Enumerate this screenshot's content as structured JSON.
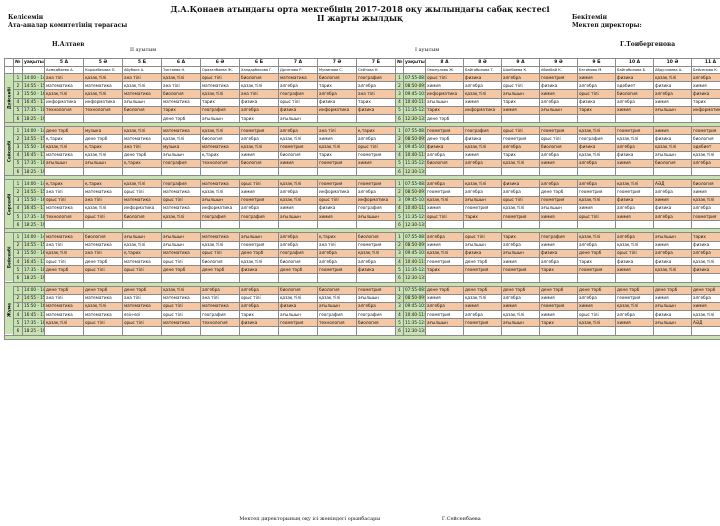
{
  "header": {
    "title": "Д.А.Қонаев атындағы орта мектебінің  2017-2018  оқу жылындағы сабақ кестесі",
    "subtitle": "II жарты жылдық",
    "agreed_l1": "Келісемін",
    "agreed_l2": "Ата-аналар комитетінің төрағасы",
    "approve_l1": "Бекітемін",
    "approve_l2": "Мектеп директоры:",
    "left_name": "Н.Алтаев",
    "right_name": "Г.Тоибергенова",
    "shift1": "II ауысым",
    "shift2": "I ауысым"
  },
  "columns": {
    "num": "№",
    "time": "уақыты",
    "shift1_classes": [
      "5 А",
      "5 Ә",
      "5 Б",
      "6 А",
      "6 Ә",
      "6 Б",
      "7 А",
      "7 Ә",
      "7 Б"
    ],
    "shift2_classes": [
      "8 А",
      "8 Ә",
      "9 А",
      "9 Ә",
      "9 Б",
      "10 А",
      "10 Ә",
      "11 А"
    ],
    "shift1_teachers": [
      "Ахмедбаева А.",
      "Коржабекова Л.",
      "Абубаке А.",
      "Токтаева Н.",
      "Оразалбаева Ж.",
      "Халдарбекова Г.",
      "Дрсенова Р.",
      "Муминова С.",
      "Сейтова Н."
    ],
    "shift2_teachers": [
      "Омонулова Ж.",
      "Байгабилова Т.",
      "Шонбаева К.",
      "Абилбай К.",
      "Бегимова М.",
      "Байгабилова Б.",
      "Абдуллаева А.",
      "Бейсенова К."
    ]
  },
  "days": [
    {
      "name": "Дүйсенбі",
      "rows": [
        [
          "14:00 - 14:45",
          "ана тілі",
          "қазақ тілі",
          "ана тілі",
          "қазақ тілі",
          "орыс тілі",
          "биология",
          "математика",
          "биология",
          "география",
          "07:55-08:40",
          "орыс тілі",
          "физика",
          "алгебра",
          "геометрия",
          "химия",
          "физика",
          "қазақ тілі",
          "алгебра"
        ],
        [
          "14:55 - 15:40",
          "математика",
          "математика",
          "қазақ тілі",
          "ана тілі",
          "математика",
          "қазақ тілі",
          "алгебра",
          "тарих",
          "алгебра",
          "08:50-09:35",
          "химия",
          "алгебра",
          "орыс тілі",
          "физика",
          "алгебра",
          "әдебиет",
          "физика",
          "химия"
        ],
        [
          "15:50 - 16:35",
          "қазақ тілі",
          "қазақ тілі",
          "математика",
          "биология",
          "қазақ тілі",
          "ана тілі",
          "география",
          "алгебра",
          "ана тілі",
          "09:45-10:30",
          "информатика",
          "қазақ тілі",
          "ағылшын",
          "химия",
          "орыс тілі",
          "биология",
          "алгебра",
          "физика"
        ],
        [
          "16:45 - 17:30",
          "информатика",
          "информатика",
          "ағылшын",
          "математика",
          "тарих",
          "физика",
          "орыс тілі",
          "физика",
          "тарих",
          "10:40-11:25",
          "ағылшын",
          "химия",
          "тарих",
          "алгебра",
          "физика",
          "алгебра",
          "химия",
          "тарих"
        ],
        [
          "17:35 - 18:20",
          "технология",
          "технология",
          "биология",
          "тарих",
          "география",
          "алгебра",
          "физика",
          "информатика",
          "физика",
          "11:35-12:20",
          "тарих",
          "информатика",
          "химия",
          "ағылшын",
          "тарих",
          "химия",
          "ағылшын",
          "информатика"
        ],
        [
          "18:25 - 19:10",
          "",
          "",
          "",
          "дене тәрб",
          "ағылшын",
          "тарих",
          "ағылшын",
          "",
          "",
          "12:30-13:15",
          "дене тәрб",
          "",
          "",
          "",
          "",
          "",
          "",
          ""
        ]
      ]
    },
    {
      "name": "Сейсенбі",
      "rows": [
        [
          "14:00 - 14:45",
          "дене тәрб",
          "музыка",
          "қазақ тілі",
          "математика",
          "қазақ тілі",
          "геометрия",
          "алгебра",
          "ана тілі",
          "қ.тарих",
          "07:55-08:40",
          "геометрия",
          "география",
          "орыс тілі",
          "геометрия",
          "қазақ тілі",
          "геометрия",
          "химия",
          "геометрия"
        ],
        [
          "14:55 - 15:40",
          "қ.тарих",
          "дене тәрб",
          "математика",
          "қазақ тілі",
          "биология",
          "алгебра",
          "қазақ тілі",
          "химия",
          "алгебра",
          "08:50-09:35",
          "дене тәрб",
          "физика",
          "геометрия",
          "орыс тілі",
          "география",
          "қазақ тілі",
          "физика",
          "биология"
        ],
        [
          "15:50 - 16:35",
          "қазақ тілі",
          "қ.тарих",
          "ана тілі",
          "музыка",
          "математика",
          "қазақ тілі",
          "геометрия",
          "қазақ тілі",
          "орыс тілі",
          "09:45-10:30",
          "физика",
          "қазақ тілі",
          "алгебра",
          "биология",
          "физика",
          "алгебра",
          "қазақ тілі",
          "әдебиет"
        ],
        [
          "16:45 - 17:30",
          "математика",
          "қазақ тілі",
          "дене тәрб",
          "ағылшын",
          "қ.тарих",
          "химия",
          "биология",
          "тарих",
          "геометрия",
          "10:40-11:25",
          "алгебра",
          "химия",
          "тарих",
          "алгебра",
          "қазақ тілі",
          "физика",
          "ағылшын",
          "қазақ тілі"
        ],
        [
          "17:35 - 18:20",
          "ағылшын",
          "ағылшын",
          "қ.тарих",
          "география",
          "технология",
          "биология",
          "химия",
          "геометрия",
          "химия",
          "11:35-12:20",
          "биология",
          "алгебра",
          "қазақ тілі",
          "химия",
          "алгебра",
          "химия",
          "биология",
          "алгебра"
        ],
        [
          "18:25 - 19:10",
          "",
          "",
          "",
          "",
          "",
          "",
          "",
          "",
          "",
          "12:30-13:15",
          "",
          "",
          "",
          "",
          "",
          "",
          "",
          ""
        ]
      ]
    },
    {
      "name": "Сәрсенбі",
      "rows": [
        [
          "14:00 - 14:45",
          "қ.тарих",
          "қ.тарих",
          "қазақ тілі",
          "география",
          "математика",
          "орыс тілі",
          "қазақ тілі",
          "геометрия",
          "геометрия",
          "07:55-08:40",
          "алгебра",
          "қазақ тілі",
          "физика",
          "алгебра",
          "алгебра",
          "қазақ тілі",
          "АӘД",
          "биология"
        ],
        [
          "14:55 - 15:40",
          "ана тілі",
          "математика",
          "орыс тілі",
          "математика",
          "қазақ тілі",
          "химия",
          "алгебра",
          "информатика",
          "алгебра",
          "08:50-09:35",
          "геометрия",
          "алгебра",
          "алгебра",
          "дене тәрб",
          "геометрия",
          "геометрия",
          "алгебра",
          "химия"
        ],
        [
          "15:50 - 16:35",
          "орыс тілі",
          "ана тілі",
          "математика",
          "орыс тілі",
          "ағылшын",
          "геометрия",
          "қазақ тілі",
          "орыс тілі",
          "информатика",
          "09:45-10:30",
          "қазақ тілі",
          "ағылшын",
          "орыс тілі",
          "геометрия",
          "қазақ тілі",
          "физика",
          "химия",
          "қазақ тілі"
        ],
        [
          "16:45 - 17:30",
          "математика",
          "қазақ тілі",
          "информатика",
          "математика",
          "информатика",
          "алгебра",
          "химия",
          "физика",
          "география",
          "10:40-11:25",
          "химия",
          "геометрия",
          "қазақ тілі",
          "ағылшын",
          "химия",
          "алгебра",
          "физика",
          "алгебра"
        ],
        [
          "17:35 - 18:20",
          "технология",
          "орыс тілі",
          "биология",
          "қазақ тілі",
          "география",
          "география",
          "ағылшын",
          "химия",
          "ағылшын",
          "11:35-12:20",
          "орыс тілі",
          "тарих",
          "геометрия",
          "химия",
          "орыс тілі",
          "химия",
          "алгебра",
          "геометрия"
        ],
        [
          "18:25 - 19:10",
          "",
          "",
          "",
          "",
          "",
          "",
          "",
          "",
          "",
          "12:30-13:15",
          "",
          "",
          "",
          "",
          "",
          "",
          "",
          ""
        ]
      ]
    },
    {
      "name": "Бейсенбі",
      "rows": [
        [
          "14:00 - 14:45",
          "математика",
          "биология",
          "ағылшын",
          "ағылшын",
          "математика",
          "ағылшын",
          "алгебра",
          "қ.тарих",
          "биология",
          "07:55-08:40",
          "алгебра",
          "орыс тілі",
          "тарих",
          "география",
          "қазақ тілі",
          "алгебра",
          "ағылшын",
          "тарих"
        ],
        [
          "14:55 - 15:40",
          "ана тілі",
          "математика",
          "қазақ тілі",
          "ағылшын",
          "қазақ тілі",
          "геометрия",
          "алгебра",
          "ана тілі",
          "геометрия",
          "08:50-09:35",
          "химия",
          "ағылшын",
          "алгебра",
          "химия",
          "алгебра",
          "қазақ тілі",
          "химия",
          "физика"
        ],
        [
          "15:50 - 16:35",
          "қазақ тілі",
          "ана тілі",
          "қ.тарих",
          "математика",
          "орыс тілі",
          "дене тәрб",
          "география",
          "алгебра",
          "қазақ тілі",
          "09:45-10:30",
          "қазақ тілі",
          "физика",
          "ағылшын",
          "физика",
          "дене тәрб",
          "орыс тілі",
          "алгебра",
          "алгебра"
        ],
        [
          "16:45 - 17:30",
          "орыс тілі",
          "дене тәрб",
          "математика",
          "орыс тілі",
          "биология",
          "қазақ тілі",
          "биология",
          "алгебра",
          "алгебра",
          "10:40-11:25",
          "геометрия",
          "дене тәрб",
          "химия",
          "алгебра",
          "тарих",
          "физика",
          "физика",
          "қазақ тілі"
        ],
        [
          "17:35 - 18:20",
          "дене тәрб",
          "орыс тілі",
          "орыс тілі",
          "дене тәрб",
          "дене тәрб",
          "физика",
          "дене тәрб",
          "геометрия",
          "физика",
          "11:35-12:20",
          "тарих",
          "геометрия",
          "геометрия",
          "тарих",
          "геометрия",
          "химия",
          "қазақ тілі",
          "физика"
        ],
        [
          "18:25 - 19:10",
          "",
          "",
          "",
          "",
          "",
          "",
          "",
          "",
          "",
          "12:30-13:15",
          "",
          "",
          "",
          "",
          "",
          "",
          "",
          ""
        ]
      ]
    },
    {
      "name": "Жұма",
      "rows": [
        [
          "14:00 - 14:45",
          "дене тәрб",
          "дене тәрб",
          "дене тәрб",
          "қазақ тілі",
          "алгебра",
          "алгебра",
          "биология",
          "биология",
          "геометрия",
          "07:55-08:40",
          "дене тәрб",
          "дене тәрб",
          "дене тәрб",
          "дене тәрб",
          "дене тәрб",
          "дене тәрб",
          "дене тәрб",
          "дене тәрб"
        ],
        [
          "14:55 - 15:40",
          "ана тілі",
          "математика",
          "ана тілі",
          "математика",
          "ана тілі",
          "орыс тілі",
          "қазақ тілі",
          "қазақ тілі",
          "ағылшын",
          "08:50-09:35",
          "химия",
          "қазақ тілі",
          "алгебра",
          "химия",
          "алгебра",
          "геометрия",
          "химия",
          "алгебра"
        ],
        [
          "15:50 - 16:35",
          "математика",
          "қазақ тілі",
          "математика",
          "орыс тілі",
          "математика",
          "алгебра",
          "физика",
          "ағылшын",
          "алгебра",
          "09:45-10:30",
          "алгебра",
          "химия",
          "химия",
          "геометрия",
          "химия",
          "қазақ тілі",
          "ағылшын",
          "химия"
        ],
        [
          "16:45 - 17:30",
          "математика",
          "математика",
          "өзін-өзі",
          "орыс тілі",
          "география",
          "тарих",
          "ағылшын",
          "география",
          "география",
          "10:40-11:25",
          "геометрия",
          "алгебра",
          "қазақ тілі",
          "химия",
          "орыс тілі",
          "алгебра",
          "физика",
          "қазақ тілі"
        ],
        [
          "17:35 - 18:20",
          "қазақ тілі",
          "орыс тілі",
          "орыс тілі",
          "математика",
          "технология",
          "физика",
          "геометрия",
          "технология",
          "биология",
          "11:35-12:20",
          "ағылшын",
          "геометрия",
          "ағылшын",
          "тарих",
          "қазақ тілі",
          "химия",
          "ағылшын",
          "АӘД"
        ],
        [
          "18:25 - 19:10",
          "",
          "",
          "",
          "",
          "",
          "",
          "",
          "",
          "",
          "12:30-13:15",
          "",
          "",
          "",
          "",
          "",
          "",
          "",
          ""
        ]
      ]
    }
  ],
  "footer": {
    "left": "Мектеп директорының оқу ісі жөніндегі орынбасары",
    "right": "Г.Сейсенбаева"
  }
}
